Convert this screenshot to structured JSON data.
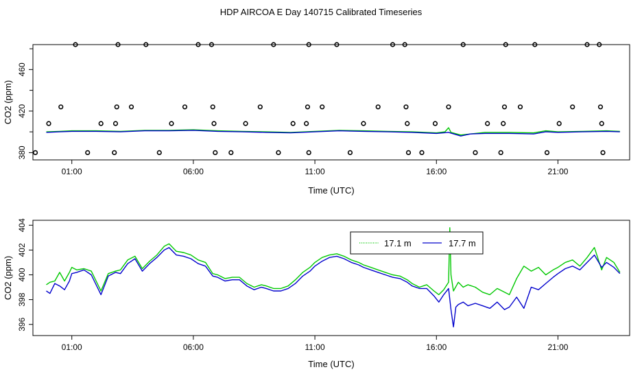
{
  "title": "HDP AIRCOA E  Day 140715  Calibrated Timeseries",
  "colors": {
    "green": "#00c800",
    "blue": "#0000cc",
    "axis": "#000000"
  },
  "chart_data": [
    {
      "type": "line",
      "name": "top",
      "xlabel": "Time (UTC)",
      "ylabel": "CO2 (ppm)",
      "xlim": [
        -0.6,
        23.95
      ],
      "ylim": [
        373,
        484
      ],
      "xticks": [
        1,
        6,
        11,
        16,
        21
      ],
      "xtick_labels": [
        "01:00",
        "06:00",
        "11:00",
        "16:00",
        "21:00"
      ],
      "yticks": [
        380,
        420,
        460
      ],
      "yminor": [
        400,
        440,
        480
      ],
      "series": [
        {
          "color": "green",
          "x": [
            -0.05,
            0.5,
            1.0,
            2.0,
            3.0,
            4.0,
            5.0,
            6.0,
            7.0,
            8.0,
            9.0,
            10.0,
            11.0,
            12.0,
            13.0,
            14.0,
            15.0,
            16.0,
            16.35,
            16.5,
            16.6,
            17.0,
            17.4,
            18.0,
            19.0,
            20.0,
            20.5,
            21.0,
            22.0,
            23.0,
            23.55
          ],
          "y": [
            400,
            400.5,
            401,
            401,
            400.5,
            401.5,
            401.5,
            402,
            401,
            400.5,
            400,
            399.5,
            400.5,
            401.5,
            401,
            400.5,
            400,
            399,
            400,
            404,
            399.5,
            397,
            398,
            399.5,
            399.5,
            399,
            401,
            400,
            400.5,
            401,
            400.5
          ]
        },
        {
          "color": "blue",
          "x": [
            -0.05,
            0.5,
            1.0,
            2.0,
            3.0,
            4.0,
            5.0,
            6.0,
            7.0,
            8.0,
            9.0,
            10.0,
            11.0,
            12.0,
            13.0,
            14.0,
            15.0,
            16.0,
            16.5,
            17.0,
            17.4,
            18.0,
            19.0,
            20.0,
            20.5,
            21.0,
            22.0,
            23.0,
            23.55
          ],
          "y": [
            399.5,
            400,
            400.5,
            400.5,
            400,
            401,
            401,
            401.5,
            400.5,
            400,
            399.5,
            399,
            400,
            401,
            400.5,
            400,
            399.5,
            398.5,
            399.5,
            396,
            398,
            398.5,
            398.5,
            398,
            400,
            399.5,
            400,
            400.5,
            400
          ]
        }
      ],
      "markers": [
        [
          -0.5,
          380
        ],
        [
          0.05,
          408
        ],
        [
          0.55,
          424
        ],
        [
          1.15,
          484
        ],
        [
          1.65,
          380
        ],
        [
          2.2,
          408
        ],
        [
          2.75,
          380
        ],
        [
          2.8,
          408
        ],
        [
          2.85,
          424
        ],
        [
          2.9,
          484
        ],
        [
          3.45,
          424
        ],
        [
          4.05,
          484
        ],
        [
          4.6,
          380
        ],
        [
          5.1,
          408
        ],
        [
          5.65,
          424
        ],
        [
          6.2,
          484
        ],
        [
          6.75,
          484
        ],
        [
          6.8,
          424
        ],
        [
          6.85,
          408
        ],
        [
          6.9,
          380
        ],
        [
          7.55,
          380
        ],
        [
          8.15,
          408
        ],
        [
          8.75,
          424
        ],
        [
          9.3,
          484
        ],
        [
          9.5,
          380
        ],
        [
          10.1,
          408
        ],
        [
          10.65,
          408
        ],
        [
          10.7,
          424
        ],
        [
          10.75,
          484
        ],
        [
          10.75,
          380
        ],
        [
          11.3,
          424
        ],
        [
          11.9,
          484
        ],
        [
          12.45,
          380
        ],
        [
          13,
          408
        ],
        [
          13.6,
          424
        ],
        [
          14.2,
          484
        ],
        [
          14.7,
          484
        ],
        [
          14.75,
          424
        ],
        [
          14.8,
          408
        ],
        [
          14.85,
          380
        ],
        [
          15.4,
          380
        ],
        [
          15.95,
          408
        ],
        [
          16.5,
          424
        ],
        [
          17.1,
          484
        ],
        [
          17.6,
          380
        ],
        [
          18.1,
          408
        ],
        [
          18.65,
          380
        ],
        [
          18.75,
          408
        ],
        [
          18.8,
          424
        ],
        [
          18.85,
          484
        ],
        [
          19.45,
          424
        ],
        [
          20.05,
          484
        ],
        [
          20.55,
          380
        ],
        [
          21.05,
          408
        ],
        [
          21.6,
          424
        ],
        [
          22.2,
          484
        ],
        [
          22.7,
          484
        ],
        [
          22.75,
          424
        ],
        [
          22.8,
          408
        ],
        [
          22.85,
          380
        ]
      ]
    },
    {
      "type": "line",
      "name": "bottom",
      "xlabel": "Time (UTC)",
      "ylabel": "CO2 (ppm)",
      "xlim": [
        -0.6,
        23.95
      ],
      "ylim": [
        395.1,
        404.4
      ],
      "xticks": [
        1,
        6,
        11,
        16,
        21
      ],
      "xtick_labels": [
        "01:00",
        "06:00",
        "11:00",
        "16:00",
        "21:00"
      ],
      "yticks": [
        396,
        398,
        400,
        402,
        404
      ],
      "legend": {
        "position": "top-right",
        "entries": [
          {
            "label": "17.1 m",
            "color": "green"
          },
          {
            "label": "17.7 m",
            "color": "blue"
          }
        ]
      },
      "series": [
        {
          "name": "17.1 m",
          "color": "green",
          "x": [
            -0.05,
            0.1,
            0.3,
            0.5,
            0.7,
            0.9,
            1.0,
            1.2,
            1.5,
            1.8,
            2.2,
            2.5,
            2.8,
            3.0,
            3.3,
            3.6,
            3.9,
            4.2,
            4.5,
            4.8,
            5.0,
            5.3,
            5.6,
            5.9,
            6.2,
            6.5,
            6.8,
            7.0,
            7.3,
            7.6,
            7.9,
            8.2,
            8.5,
            8.8,
            9.0,
            9.3,
            9.6,
            9.9,
            10.2,
            10.5,
            10.8,
            11.0,
            11.3,
            11.6,
            11.9,
            12.2,
            12.5,
            12.8,
            13.0,
            13.3,
            13.6,
            13.9,
            14.2,
            14.5,
            14.8,
            15.0,
            15.3,
            15.6,
            15.9,
            16.1,
            16.3,
            16.5,
            16.55,
            16.6,
            16.7,
            16.9,
            17.1,
            17.3,
            17.6,
            17.9,
            18.2,
            18.5,
            18.8,
            19.0,
            19.3,
            19.6,
            19.9,
            20.2,
            20.5,
            20.8,
            21.0,
            21.3,
            21.6,
            21.9,
            22.2,
            22.5,
            22.8,
            23.0,
            23.3,
            23.55
          ],
          "y": [
            399.2,
            399.4,
            399.5,
            400.2,
            399.5,
            400.2,
            400.6,
            400.4,
            400.5,
            400.3,
            398.7,
            400.1,
            400.3,
            400.4,
            401.2,
            401.5,
            400.5,
            401.1,
            401.6,
            402.3,
            402.5,
            401.9,
            401.8,
            401.6,
            401.2,
            401.0,
            400.1,
            400.0,
            399.7,
            399.8,
            399.8,
            399.3,
            399.0,
            399.2,
            399.1,
            398.9,
            398.9,
            399.1,
            399.6,
            400.2,
            400.6,
            401.0,
            401.4,
            401.6,
            401.7,
            401.5,
            401.2,
            401.0,
            400.8,
            400.6,
            400.4,
            400.2,
            400.0,
            399.9,
            399.6,
            399.3,
            399.0,
            399.2,
            398.7,
            398.4,
            398.8,
            399.4,
            403.8,
            400.0,
            398.7,
            399.4,
            399.0,
            399.2,
            399.0,
            398.6,
            398.4,
            398.9,
            398.6,
            398.4,
            399.7,
            400.7,
            400.3,
            400.6,
            400.0,
            400.4,
            400.6,
            401.0,
            401.2,
            400.7,
            401.4,
            402.2,
            400.4,
            401.4,
            401.0,
            400.2
          ]
        },
        {
          "name": "17.7 m",
          "color": "blue",
          "x": [
            -0.05,
            0.1,
            0.3,
            0.5,
            0.7,
            0.9,
            1.0,
            1.2,
            1.5,
            1.8,
            2.2,
            2.5,
            2.8,
            3.0,
            3.3,
            3.6,
            3.9,
            4.2,
            4.5,
            4.8,
            5.0,
            5.3,
            5.6,
            5.9,
            6.2,
            6.5,
            6.8,
            7.0,
            7.3,
            7.6,
            7.9,
            8.2,
            8.5,
            8.8,
            9.0,
            9.3,
            9.6,
            9.9,
            10.2,
            10.5,
            10.8,
            11.0,
            11.3,
            11.6,
            11.9,
            12.2,
            12.5,
            12.8,
            13.0,
            13.3,
            13.6,
            13.9,
            14.2,
            14.5,
            14.8,
            15.0,
            15.3,
            15.6,
            15.9,
            16.1,
            16.3,
            16.5,
            16.6,
            16.7,
            16.8,
            16.9,
            17.1,
            17.3,
            17.6,
            17.9,
            18.2,
            18.5,
            18.8,
            19.0,
            19.3,
            19.6,
            19.9,
            20.2,
            20.5,
            20.8,
            21.0,
            21.3,
            21.6,
            21.9,
            22.2,
            22.5,
            22.8,
            23.0,
            23.3,
            23.55
          ],
          "y": [
            398.7,
            398.5,
            399.3,
            399.1,
            398.8,
            399.5,
            400.1,
            400.2,
            400.4,
            400.0,
            398.4,
            399.9,
            400.2,
            400.1,
            400.9,
            401.3,
            400.3,
            400.9,
            401.4,
            402.0,
            402.2,
            401.6,
            401.5,
            401.3,
            400.9,
            400.7,
            399.9,
            399.8,
            399.5,
            399.6,
            399.6,
            399.1,
            398.8,
            399.0,
            398.9,
            398.7,
            398.7,
            398.9,
            399.3,
            399.9,
            400.3,
            400.7,
            401.1,
            401.4,
            401.5,
            401.3,
            401.0,
            400.8,
            400.6,
            400.4,
            400.2,
            400.0,
            399.8,
            399.7,
            399.4,
            399.1,
            398.9,
            398.9,
            398.3,
            397.8,
            398.4,
            398.9,
            397.2,
            395.8,
            397.4,
            397.6,
            397.8,
            397.5,
            397.7,
            397.5,
            397.3,
            397.8,
            397.2,
            397.4,
            398.2,
            397.3,
            399.0,
            398.8,
            399.3,
            399.8,
            400.1,
            400.5,
            400.7,
            400.4,
            401.0,
            401.6,
            400.6,
            401.0,
            400.6,
            400.1
          ]
        }
      ]
    }
  ]
}
